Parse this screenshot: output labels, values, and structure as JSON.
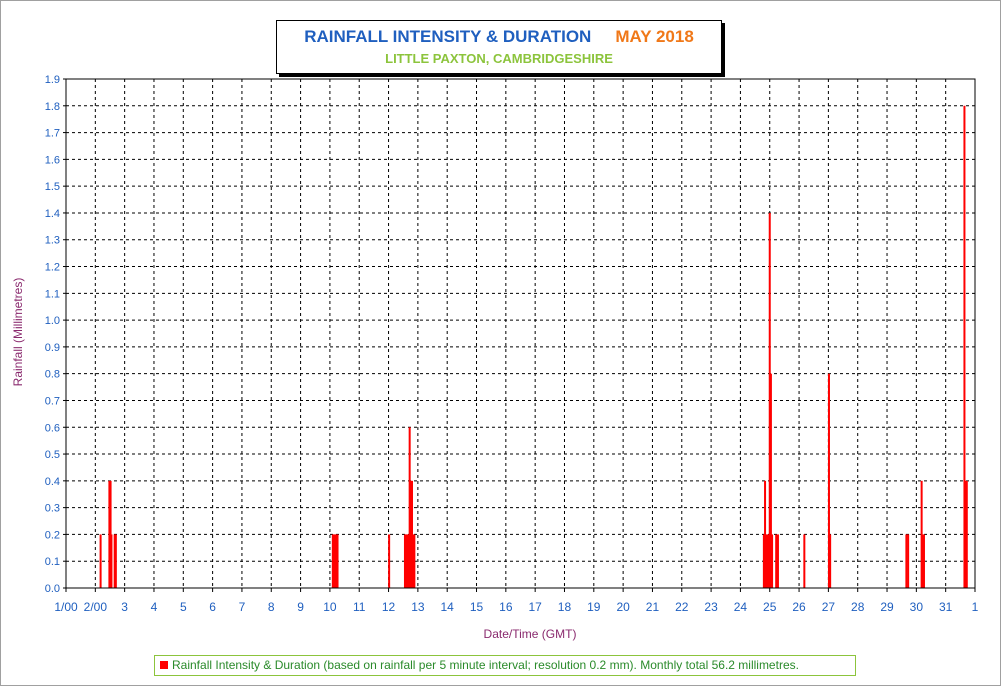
{
  "chart_data": {
    "type": "bar",
    "title": "RAINFALL INTENSITY & DURATION",
    "title_month": "MAY 2018",
    "subtitle": "LITTLE PAXTON, CAMBRIDGESHIRE",
    "xlabel": "Date/Time (GMT)",
    "ylabel": "Rainfall (Millimetres)",
    "ylim": [
      0,
      1.9
    ],
    "xlim": [
      1,
      31
    ],
    "y_ticks": [
      "0.0",
      "0.1",
      "0.2",
      "0.3",
      "0.4",
      "0.5",
      "0.6",
      "0.7",
      "0.8",
      "0.9",
      "1.0",
      "1.1",
      "1.2",
      "1.3",
      "1.4",
      "1.5",
      "1.6",
      "1.7",
      "1.8",
      "1.9"
    ],
    "x_ticks": [
      "1/00",
      "2/00",
      "3",
      "4",
      "5",
      "6",
      "7",
      "8",
      "9",
      "10",
      "11",
      "12",
      "13",
      "14",
      "15",
      "16",
      "17",
      "18",
      "19",
      "20",
      "21",
      "22",
      "23",
      "24",
      "25",
      "26",
      "27",
      "28",
      "29",
      "30",
      "31",
      "1"
    ],
    "grid": true,
    "series_color": "#ff0000",
    "legend": {
      "placement": "bottom",
      "text": "Rainfall Intensity & Duration (based on rainfall per 5 minute interval; resolution 0.2 mm). Monthly total 56.2 millimetres."
    },
    "points": [
      {
        "x": 2.18,
        "y": 0.2
      },
      {
        "x": 2.48,
        "y": 0.4
      },
      {
        "x": 2.52,
        "y": 0.4
      },
      {
        "x": 2.55,
        "y": 0.2
      },
      {
        "x": 2.66,
        "y": 0.2
      },
      {
        "x": 2.7,
        "y": 0.2
      },
      {
        "x": 10.1,
        "y": 0.2
      },
      {
        "x": 10.14,
        "y": 0.2
      },
      {
        "x": 10.18,
        "y": 0.2
      },
      {
        "x": 10.22,
        "y": 0.2
      },
      {
        "x": 10.26,
        "y": 0.2
      },
      {
        "x": 12.02,
        "y": 0.2
      },
      {
        "x": 12.56,
        "y": 0.2
      },
      {
        "x": 12.6,
        "y": 0.2
      },
      {
        "x": 12.64,
        "y": 0.2
      },
      {
        "x": 12.68,
        "y": 0.2
      },
      {
        "x": 12.72,
        "y": 0.6
      },
      {
        "x": 12.76,
        "y": 0.4
      },
      {
        "x": 12.8,
        "y": 0.4
      },
      {
        "x": 12.84,
        "y": 0.2
      },
      {
        "x": 12.88,
        "y": 0.2
      },
      {
        "x": 24.8,
        "y": 0.2
      },
      {
        "x": 24.84,
        "y": 0.4
      },
      {
        "x": 24.88,
        "y": 0.2
      },
      {
        "x": 24.92,
        "y": 0.2
      },
      {
        "x": 24.96,
        "y": 0.2
      },
      {
        "x": 25.0,
        "y": 1.4
      },
      {
        "x": 25.04,
        "y": 0.8
      },
      {
        "x": 25.08,
        "y": 0.2
      },
      {
        "x": 25.22,
        "y": 0.2
      },
      {
        "x": 25.28,
        "y": 0.2
      },
      {
        "x": 26.18,
        "y": 0.2
      },
      {
        "x": 27.02,
        "y": 0.8
      },
      {
        "x": 27.06,
        "y": 0.2
      },
      {
        "x": 29.66,
        "y": 0.2
      },
      {
        "x": 29.72,
        "y": 0.2
      },
      {
        "x": 30.18,
        "y": 0.4
      },
      {
        "x": 30.22,
        "y": 0.2
      },
      {
        "x": 30.26,
        "y": 0.2
      },
      {
        "x": 31.64,
        "y": 1.8
      },
      {
        "x": 31.68,
        "y": 0.4
      },
      {
        "x": 31.72,
        "y": 0.4
      }
    ]
  }
}
